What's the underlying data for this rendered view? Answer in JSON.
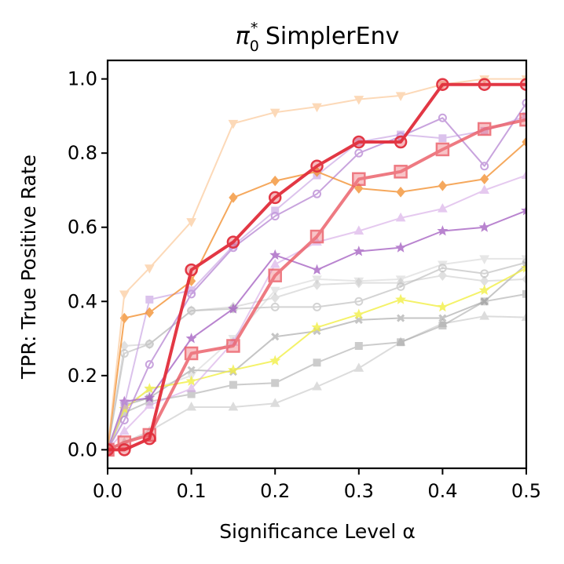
{
  "chart_data": {
    "type": "line",
    "title": "π0* SimplerEnv",
    "title_parts": {
      "pi": "π",
      "sub": "0",
      "sup": "*",
      "rest": " SimplerEnv"
    },
    "xlabel": "Significance Level α",
    "ylabel": "TPR: True Positive Rate",
    "xlim": [
      0.0,
      0.5
    ],
    "ylim": [
      -0.05,
      1.05
    ],
    "xticks": [
      "0.0",
      "0.1",
      "0.2",
      "0.3",
      "0.4",
      "0.5"
    ],
    "yticks": [
      "0.0",
      "0.2",
      "0.4",
      "0.6",
      "0.8",
      "1.0"
    ],
    "grid": false,
    "x": [
      0.0,
      0.02,
      0.05,
      0.1,
      0.15,
      0.2,
      0.25,
      0.3,
      0.35,
      0.4,
      0.45,
      0.5
    ],
    "series": [
      {
        "name": "gray-triangle-up",
        "color": "#b3b3b3",
        "opacity": 0.45,
        "marker": "triangle-up",
        "values": [
          0.0,
          0.02,
          0.05,
          0.115,
          0.115,
          0.125,
          0.17,
          0.22,
          0.29,
          0.34,
          0.36,
          0.357
        ]
      },
      {
        "name": "gray-square",
        "color": "#9a9a9a",
        "opacity": 0.5,
        "marker": "square",
        "values": [
          0.0,
          0.1,
          0.13,
          0.15,
          0.175,
          0.18,
          0.235,
          0.28,
          0.29,
          0.335,
          0.4,
          0.42
        ]
      },
      {
        "name": "gray-x",
        "color": "#8c8c8c",
        "opacity": 0.5,
        "marker": "x",
        "values": [
          0.0,
          0.12,
          0.14,
          0.215,
          0.21,
          0.305,
          0.32,
          0.35,
          0.355,
          0.355,
          0.4,
          0.5
        ]
      },
      {
        "name": "gray-circle",
        "color": "#a0a0a0",
        "opacity": 0.45,
        "marker": "circle",
        "values": [
          0.0,
          0.26,
          0.285,
          0.375,
          0.38,
          0.385,
          0.385,
          0.4,
          0.44,
          0.49,
          0.475,
          0.505
        ]
      },
      {
        "name": "gray-diamond",
        "color": "#bcbcbc",
        "opacity": 0.45,
        "marker": "diamond",
        "values": [
          0.0,
          0.28,
          0.285,
          0.375,
          0.385,
          0.41,
          0.445,
          0.45,
          0.45,
          0.47,
          0.455,
          0.46
        ]
      },
      {
        "name": "gray-triangle-down",
        "color": "#c8c8c8",
        "opacity": 0.45,
        "marker": "triangle-down",
        "values": [
          0.0,
          0.12,
          0.16,
          0.2,
          0.3,
          0.43,
          0.46,
          0.455,
          0.46,
          0.5,
          0.515,
          0.515
        ]
      },
      {
        "name": "yellow-star",
        "color": "#f2ef45",
        "opacity": 0.8,
        "marker": "star",
        "values": [
          0.0,
          0.11,
          0.165,
          0.185,
          0.215,
          0.24,
          0.33,
          0.365,
          0.405,
          0.385,
          0.43,
          0.49
        ]
      },
      {
        "name": "lavender-triangle-up",
        "color": "#d4a6e6",
        "opacity": 0.6,
        "marker": "triangle-up",
        "values": [
          0.0,
          0.05,
          0.12,
          0.165,
          0.29,
          0.5,
          0.56,
          0.59,
          0.625,
          0.65,
          0.7,
          0.74
        ]
      },
      {
        "name": "purple-star",
        "color": "#a25cc0",
        "opacity": 0.75,
        "marker": "star",
        "values": [
          0.0,
          0.13,
          0.14,
          0.3,
          0.38,
          0.525,
          0.485,
          0.535,
          0.545,
          0.59,
          0.6,
          0.645
        ]
      },
      {
        "name": "purple-circle",
        "color": "#b27dd0",
        "opacity": 0.7,
        "marker": "circle",
        "values": [
          0.0,
          0.08,
          0.23,
          0.42,
          0.545,
          0.63,
          0.69,
          0.8,
          0.845,
          0.895,
          0.765,
          0.935
        ]
      },
      {
        "name": "violet-square",
        "color": "#c49be0",
        "opacity": 0.6,
        "marker": "square",
        "values": [
          0.0,
          0.12,
          0.405,
          0.43,
          0.55,
          0.645,
          0.74,
          0.83,
          0.85,
          0.84,
          0.86,
          0.9
        ]
      },
      {
        "name": "orange-diamond",
        "color": "#f28c28",
        "opacity": 0.75,
        "marker": "diamond",
        "values": [
          0.0,
          0.355,
          0.37,
          0.455,
          0.68,
          0.725,
          0.75,
          0.705,
          0.695,
          0.712,
          0.73,
          0.83
        ]
      },
      {
        "name": "peach-triangle-down",
        "color": "#fbc08a",
        "opacity": 0.6,
        "marker": "triangle-down",
        "values": [
          0.0,
          0.42,
          0.49,
          0.615,
          0.88,
          0.91,
          0.925,
          0.945,
          0.955,
          0.985,
          1.0,
          1.0
        ]
      },
      {
        "name": "salmon-square",
        "color": "#ea5a64",
        "opacity": 0.8,
        "marker": "square-large",
        "values": [
          0.0,
          0.02,
          0.04,
          0.26,
          0.28,
          0.47,
          0.575,
          0.73,
          0.75,
          0.81,
          0.865,
          0.89
        ]
      },
      {
        "name": "red-circle",
        "color": "#e12d3a",
        "opacity": 0.95,
        "marker": "circle-large",
        "values": [
          0.0,
          0.0,
          0.03,
          0.485,
          0.56,
          0.68,
          0.765,
          0.83,
          0.83,
          0.985,
          0.985,
          0.985
        ]
      }
    ]
  }
}
